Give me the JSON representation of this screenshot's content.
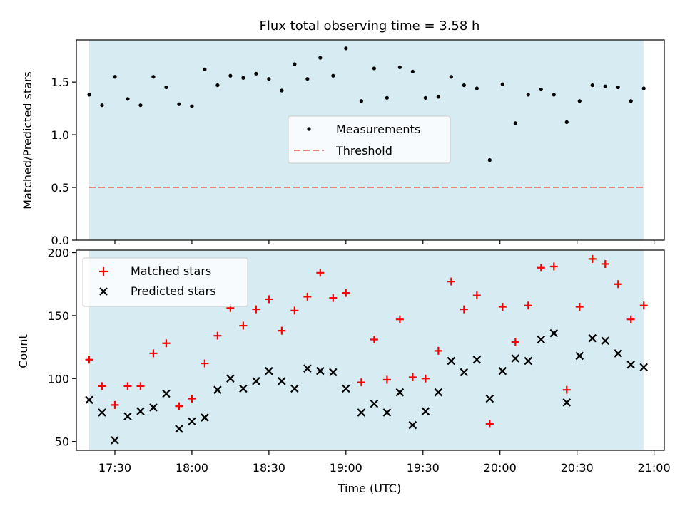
{
  "title": "Flux total observing time = 3.58 h",
  "xlabel": "Time (UTC)",
  "x_ticks": [
    "17:30",
    "18:00",
    "18:30",
    "19:00",
    "19:30",
    "20:00",
    "20:30",
    "21:00"
  ],
  "colors": {
    "shade": "#add8e6",
    "threshold": "#f08080",
    "matched": "#ff0000",
    "predicted": "#000000",
    "measurement": "#000000"
  },
  "chart_data": [
    {
      "type": "scatter",
      "ylabel": "Matched/Predicted stars",
      "ylim": [
        0,
        1.9
      ],
      "yticks": [
        "0.0",
        "0.5",
        "1.0",
        "1.5"
      ],
      "xlim": [
        "17:15",
        "21:04"
      ],
      "observing_window": [
        "17:20",
        "20:56"
      ],
      "threshold": 0.5,
      "legend_position": "center",
      "legend": [
        "Measurements",
        "Threshold"
      ],
      "series": [
        {
          "name": "Measurements",
          "x": [
            "17:20",
            "17:25",
            "17:30",
            "17:35",
            "17:40",
            "17:45",
            "17:50",
            "17:55",
            "18:00",
            "18:05",
            "18:10",
            "18:15",
            "18:20",
            "18:25",
            "18:30",
            "18:35",
            "18:40",
            "18:45",
            "18:50",
            "18:55",
            "19:00",
            "19:06",
            "19:11",
            "19:16",
            "19:21",
            "19:26",
            "19:31",
            "19:36",
            "19:41",
            "19:46",
            "19:51",
            "19:56",
            "20:01",
            "20:06",
            "20:11",
            "20:16",
            "20:21",
            "20:26",
            "20:31",
            "20:36",
            "20:41",
            "20:46",
            "20:51",
            "20:56"
          ],
          "y": [
            1.38,
            1.28,
            1.55,
            1.34,
            1.28,
            1.55,
            1.45,
            1.29,
            1.27,
            1.62,
            1.47,
            1.56,
            1.54,
            1.58,
            1.53,
            1.42,
            1.67,
            1.53,
            1.73,
            1.56,
            1.82,
            1.32,
            1.63,
            1.35,
            1.64,
            1.6,
            1.35,
            1.36,
            1.55,
            1.47,
            1.44,
            0.76,
            1.48,
            1.11,
            1.38,
            1.43,
            1.38,
            1.12,
            1.32,
            1.47,
            1.46,
            1.45,
            1.32,
            1.44
          ]
        }
      ]
    },
    {
      "type": "scatter",
      "ylabel": "Count",
      "ylim": [
        43,
        202
      ],
      "yticks": [
        "50",
        "100",
        "150",
        "200"
      ],
      "xlim": [
        "17:15",
        "21:04"
      ],
      "observing_window": [
        "17:20",
        "20:56"
      ],
      "legend_position": "top-left",
      "legend": [
        "Matched stars",
        "Predicted stars"
      ],
      "series": [
        {
          "name": "Matched stars",
          "x": [
            "17:20",
            "17:25",
            "17:30",
            "17:35",
            "17:40",
            "17:45",
            "17:50",
            "17:55",
            "18:00",
            "18:05",
            "18:10",
            "18:15",
            "18:20",
            "18:25",
            "18:30",
            "18:35",
            "18:40",
            "18:45",
            "18:50",
            "18:55",
            "19:00",
            "19:06",
            "19:11",
            "19:16",
            "19:21",
            "19:26",
            "19:31",
            "19:36",
            "19:41",
            "19:46",
            "19:51",
            "19:56",
            "20:01",
            "20:06",
            "20:11",
            "20:16",
            "20:21",
            "20:26",
            "20:31",
            "20:36",
            "20:41",
            "20:46",
            "20:51",
            "20:56"
          ],
          "y": [
            115,
            94,
            79,
            94,
            94,
            120,
            128,
            78,
            84,
            112,
            134,
            156,
            142,
            155,
            163,
            138,
            154,
            165,
            184,
            164,
            168,
            97,
            131,
            99,
            147,
            101,
            100,
            122,
            177,
            155,
            166,
            64,
            157,
            129,
            158,
            188,
            189,
            91,
            157,
            195,
            191,
            175,
            147,
            158
          ]
        },
        {
          "name": "Predicted stars",
          "x": [
            "17:20",
            "17:25",
            "17:30",
            "17:35",
            "17:40",
            "17:45",
            "17:50",
            "17:55",
            "18:00",
            "18:05",
            "18:10",
            "18:15",
            "18:20",
            "18:25",
            "18:30",
            "18:35",
            "18:40",
            "18:45",
            "18:50",
            "18:55",
            "19:00",
            "19:06",
            "19:11",
            "19:16",
            "19:21",
            "19:26",
            "19:31",
            "19:36",
            "19:41",
            "19:46",
            "19:51",
            "19:56",
            "20:01",
            "20:06",
            "20:11",
            "20:16",
            "20:21",
            "20:26",
            "20:31",
            "20:36",
            "20:41",
            "20:46",
            "20:51",
            "20:56"
          ],
          "y": [
            83,
            73,
            51,
            70,
            74,
            77,
            88,
            60,
            66,
            69,
            91,
            100,
            92,
            98,
            106,
            98,
            92,
            108,
            106,
            105,
            92,
            73,
            80,
            73,
            89,
            63,
            74,
            89,
            114,
            105,
            115,
            84,
            106,
            116,
            114,
            131,
            136,
            81,
            118,
            132,
            130,
            120,
            111,
            109
          ]
        }
      ]
    }
  ]
}
